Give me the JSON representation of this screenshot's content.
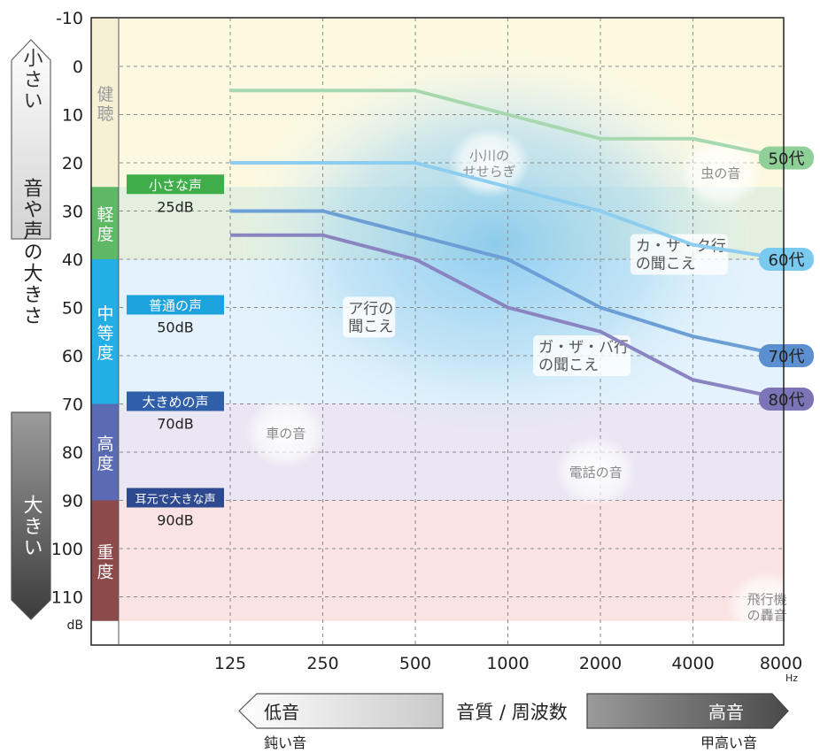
{
  "chart_data": {
    "type": "line",
    "x": [
      "125",
      "250",
      "500",
      "1000",
      "2000",
      "4000",
      "8000"
    ],
    "x_unit": "Hz",
    "y_unit": "dB",
    "yticks": [
      -10,
      0,
      10,
      20,
      30,
      40,
      50,
      60,
      70,
      80,
      90,
      100,
      110
    ],
    "ylim": [
      -10,
      115
    ],
    "y_inverted": true,
    "series": [
      {
        "name": "50代",
        "values": [
          5,
          5,
          5,
          10,
          15,
          15,
          19
        ],
        "color": "#a8d8b0",
        "tag_color": "#8fcf98"
      },
      {
        "name": "60代",
        "values": [
          20,
          20,
          20,
          25,
          30,
          37,
          40
        ],
        "color": "#8dcdf0",
        "tag_color": "#7ac9ef"
      },
      {
        "name": "70代",
        "values": [
          30,
          30,
          35,
          40,
          50,
          56,
          60
        ],
        "color": "#6c9fd6",
        "tag_color": "#5b8fd0"
      },
      {
        "name": "80代",
        "values": [
          35,
          35,
          40,
          50,
          55,
          65,
          69
        ],
        "color": "#8a84c0",
        "tag_color": "#7c74b6"
      }
    ],
    "bands": [
      {
        "label": "健聴",
        "from": -10,
        "to": 25,
        "fill": "#fdf9e1",
        "side": "#f6f1d5",
        "label_color": "#9a9a9a"
      },
      {
        "label": "軽度",
        "from": 25,
        "to": 40,
        "fill": "#e4f0df",
        "side": "#5fb866",
        "label_color": "#ffffff"
      },
      {
        "label": "中等度",
        "from": 40,
        "to": 70,
        "fill": "#e3f2fc",
        "side": "#23aee5",
        "label_color": "#ffffff"
      },
      {
        "label": "高度",
        "from": 70,
        "to": 90,
        "fill": "#eae6f3",
        "side": "#5b6bb3",
        "label_color": "#ffffff"
      },
      {
        "label": "重度",
        "from": 90,
        "to": 115,
        "fill": "#fbe3e3",
        "side": "#8c4a4a",
        "label_color": "#ffffff"
      }
    ],
    "voice_levels": [
      {
        "label": "小さな声",
        "db_text": "25dB",
        "db": 25,
        "color": "#3fae4a"
      },
      {
        "label": "普通の声",
        "db_text": "50dB",
        "db": 50,
        "color": "#1ca3dd"
      },
      {
        "label": "大きめの声",
        "db_text": "70dB",
        "db": 70,
        "color": "#2f5fa9"
      },
      {
        "label": "耳元で大きな声",
        "db_text": "90dB",
        "db": 90,
        "color": "#2d4a91"
      }
    ],
    "ambient_sounds": [
      {
        "text": [
          "小川の",
          "せせらぎ"
        ],
        "x_log": 2.8,
        "db": 20
      },
      {
        "text": [
          "虫の音"
        ],
        "x_log": 5.3,
        "db": 22
      },
      {
        "text": [
          "車の音"
        ],
        "x_log": 0.6,
        "db": 76
      },
      {
        "text": [
          "電話の音"
        ],
        "x_log": 3.95,
        "db": 84
      },
      {
        "text": [
          "飛行機",
          "の轟音"
        ],
        "x_log": 5.8,
        "db": 112
      }
    ],
    "speech_regions": [
      {
        "text": [
          "ア行の",
          "聞こえ"
        ],
        "x_log": 1.5,
        "db": 52
      },
      {
        "text": [
          "カ・サ・タ行",
          "の聞こえ"
        ],
        "x_log": 4.85,
        "db": 39
      },
      {
        "text": [
          "ガ・ザ・バ行",
          "の聞こえ"
        ],
        "x_log": 3.8,
        "db": 60
      }
    ]
  },
  "left_scale": {
    "top_label": "小さい",
    "middle_label": "音や声の大きさ",
    "bottom_label": "大きい"
  },
  "x_axis": {
    "title": "音質 / 周波数",
    "low_label": "低音",
    "low_caption": "鈍い音",
    "high_label": "高音",
    "high_caption": "甲高い音"
  }
}
